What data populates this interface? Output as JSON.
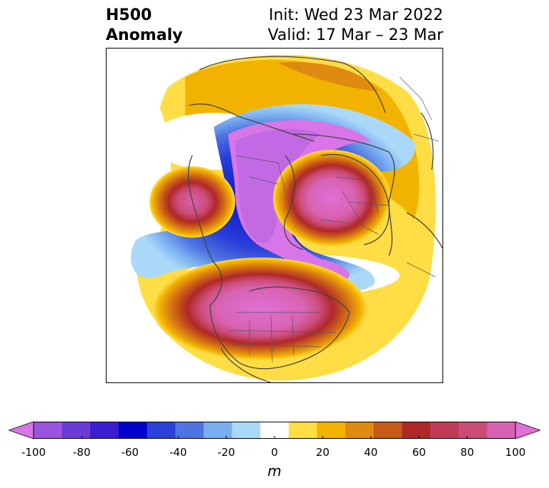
{
  "title": {
    "left_line1": "H500",
    "left_line2": "Anomaly",
    "right_line1": "Init: Wed 23 Mar 2022",
    "right_line2": "Valid: 17 Mar – 23 Mar"
  },
  "colorbar": {
    "units": "m",
    "ticks": [
      "-100",
      "-80",
      "-60",
      "-40",
      "-20",
      "0",
      "20",
      "40",
      "60",
      "80",
      "100"
    ],
    "min": -100,
    "max": 100,
    "colors": [
      "#d875e8",
      "#9b55dd",
      "#6a3bd6",
      "#3a1fd0",
      "#0000cc",
      "#2b40d8",
      "#4f73e0",
      "#79aef0",
      "#aad8f8",
      "#ffffff",
      "#ffdd44",
      "#f2b300",
      "#df8a10",
      "#c85a18",
      "#b02828",
      "#c03c56",
      "#cc4c78",
      "#d862b2",
      "#e070d6"
    ]
  },
  "map": {
    "colors": {
      "coast": "#444444",
      "border": "#555555"
    }
  }
}
